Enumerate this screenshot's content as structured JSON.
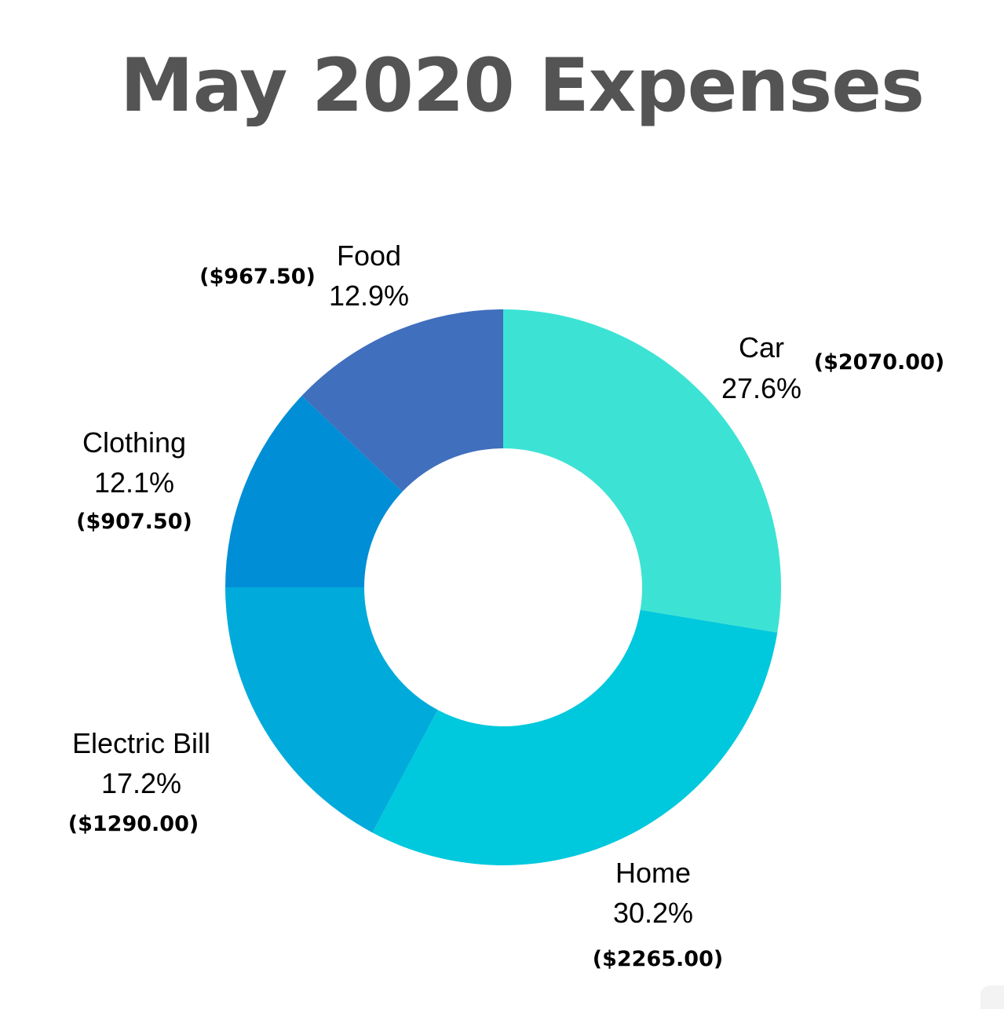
{
  "chart_data": {
    "type": "pie",
    "title": "May 2020 Expenses",
    "donut": true,
    "legend": "none",
    "slices": [
      {
        "label": "Car",
        "value": 2070.0,
        "percent": "27.6%",
        "amount": "($2070.00)",
        "color": "#3ce3d4"
      },
      {
        "label": "Home",
        "value": 2265.0,
        "percent": "30.2%",
        "amount": "($2265.00)",
        "color": "#00c8dd"
      },
      {
        "label": "Electric Bill",
        "value": 1290.0,
        "percent": "17.2%",
        "amount": "($1290.00)",
        "color": "#00abdb"
      },
      {
        "label": "Clothing",
        "value": 907.5,
        "percent": "12.1%",
        "amount": "($907.50)",
        "color": "#008ed6"
      },
      {
        "label": "Food",
        "value": 967.5,
        "percent": "12.9%",
        "amount": "($967.50)",
        "color": "#406fbd"
      }
    ]
  }
}
